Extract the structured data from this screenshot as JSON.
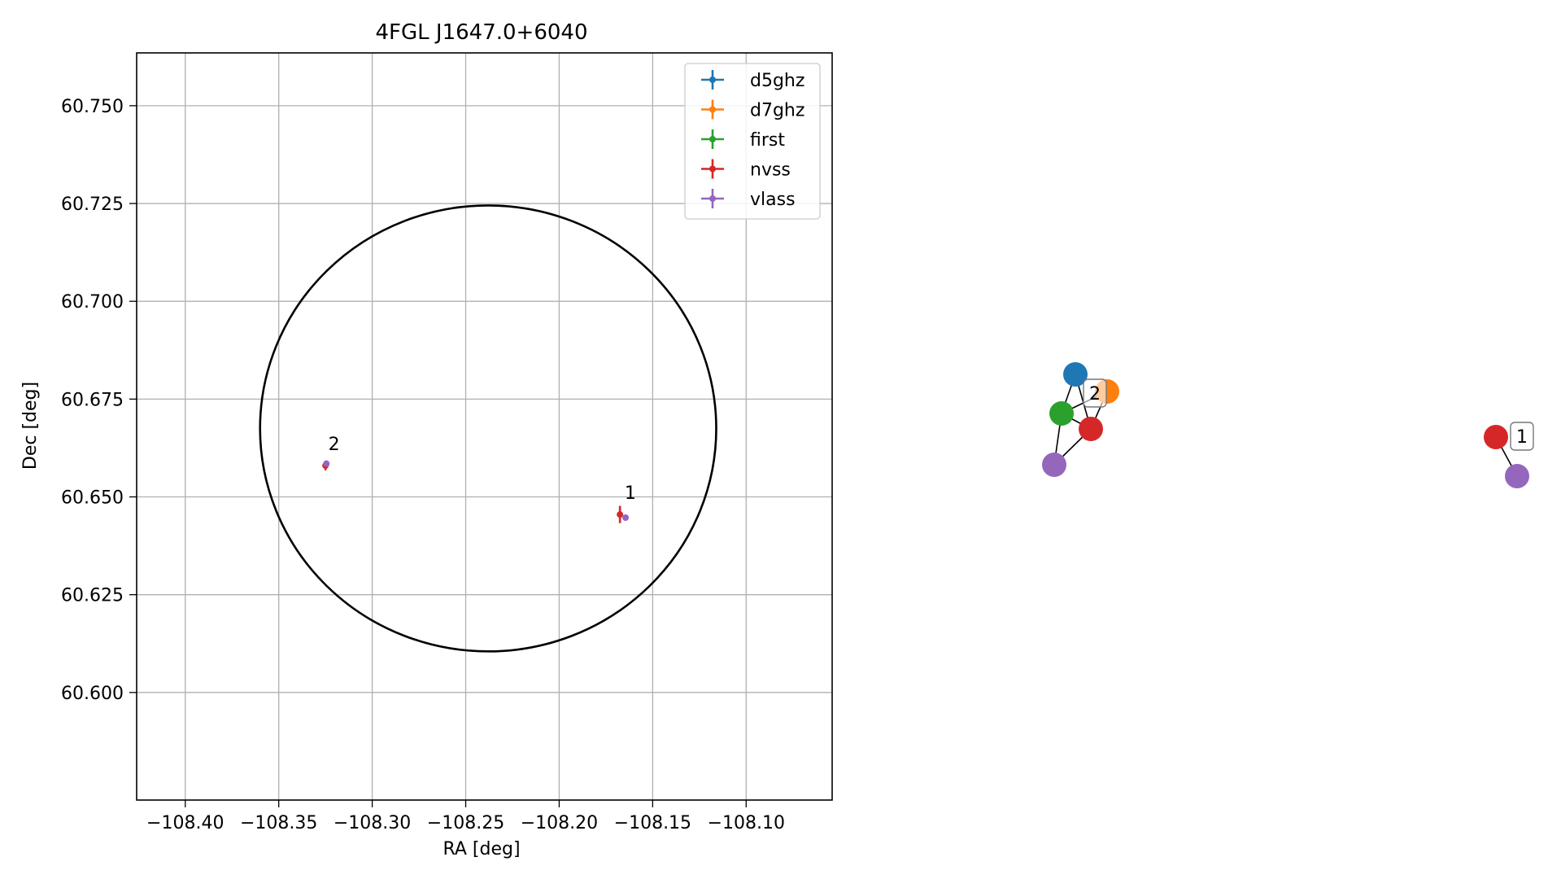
{
  "chart_data": [
    {
      "type": "scatter",
      "title": "4FGL J1647.0+6040",
      "xlabel": "RA [deg]",
      "ylabel": "Dec [deg]",
      "xlim": [
        -108.426,
        -108.054
      ],
      "ylim": [
        60.5725,
        60.7635
      ],
      "xticks": [
        -108.4,
        -108.35,
        -108.3,
        -108.25,
        -108.2,
        -108.15,
        -108.1
      ],
      "xtick_labels": [
        "−108.40",
        "−108.35",
        "−108.30",
        "−108.25",
        "−108.20",
        "−108.15",
        "−108.10"
      ],
      "yticks": [
        60.6,
        60.625,
        60.65,
        60.675,
        60.7,
        60.725,
        60.75
      ],
      "ytick_labels": [
        "60.600",
        "60.625",
        "60.650",
        "60.675",
        "60.700",
        "60.725",
        "60.750"
      ],
      "grid": true,
      "legend_placement": "top-right",
      "ellipse": {
        "center": [
          -108.238,
          60.6675
        ],
        "radius_ra": 0.122,
        "radius_dec": 0.057,
        "color": "#000000"
      },
      "series": [
        {
          "name": "d5ghz",
          "color": "#1f77b4",
          "points": []
        },
        {
          "name": "d7ghz",
          "color": "#ff7f0e",
          "points": []
        },
        {
          "name": "first",
          "color": "#2ca02c",
          "points": []
        },
        {
          "name": "nvss",
          "color": "#d62728",
          "points": [
            {
              "x": -108.1675,
              "y": 60.6455,
              "yerr": 0.0022,
              "xerr": 0.001
            },
            {
              "x": -108.325,
              "y": 60.658,
              "yerr": 0.0012,
              "xerr": 0.0008
            }
          ]
        },
        {
          "name": "vlass",
          "color": "#9467bd",
          "points": [
            {
              "x": -108.1645,
              "y": 60.6447,
              "yerr": 0.0004,
              "xerr": 0.0004
            },
            {
              "x": -108.3245,
              "y": 60.6585,
              "yerr": 0.0004,
              "xerr": 0.0004
            }
          ]
        }
      ],
      "annotations": [
        {
          "text": "1",
          "x": -108.165,
          "y": 60.6495
        },
        {
          "text": "2",
          "x": -108.3235,
          "y": 60.662
        }
      ]
    },
    {
      "type": "graph",
      "nodes": [
        {
          "id": "2-d5ghz",
          "color": "#1f77b4"
        },
        {
          "id": "2-d7ghz",
          "color": "#ff7f0e"
        },
        {
          "id": "2-first",
          "color": "#2ca02c"
        },
        {
          "id": "2-nvss",
          "color": "#d62728"
        },
        {
          "id": "2-vlass",
          "color": "#9467bd"
        },
        {
          "id": "1-nvss",
          "color": "#d62728"
        },
        {
          "id": "1-vlass",
          "color": "#9467bd"
        }
      ],
      "edges": [
        [
          "2-d5ghz",
          "2-first"
        ],
        [
          "2-d5ghz",
          "2-nvss"
        ],
        [
          "2-first",
          "2-d7ghz"
        ],
        [
          "2-first",
          "2-nvss"
        ],
        [
          "2-first",
          "2-vlass"
        ],
        [
          "2-nvss",
          "2-vlass"
        ],
        [
          "2-d7ghz",
          "2-nvss"
        ],
        [
          "1-nvss",
          "1-vlass"
        ]
      ],
      "labels": [
        {
          "text": "2",
          "node": "2-d7ghz"
        },
        {
          "text": "1",
          "node": "1-nvss"
        }
      ]
    }
  ]
}
